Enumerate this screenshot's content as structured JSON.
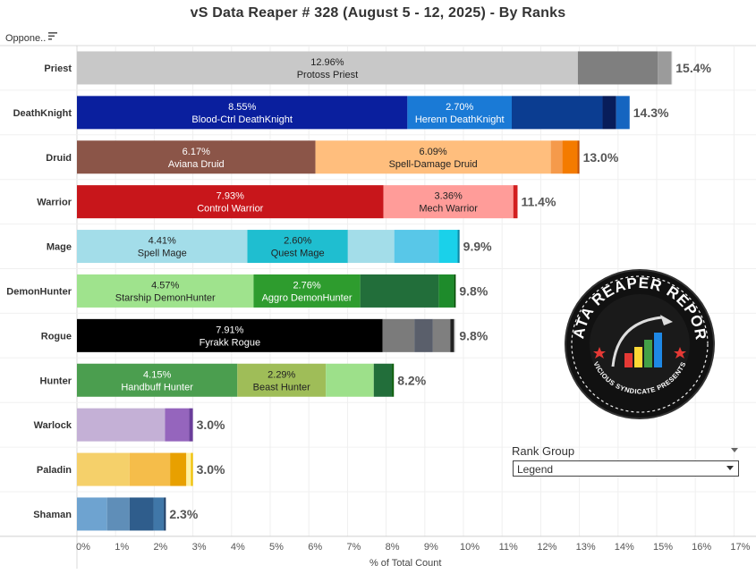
{
  "title": "vS Data Reaper #  328 (August 5 - 12, 2025) - By Ranks",
  "header": {
    "row_label": "Oppone..",
    "sort_icon": "sort-descending-icon"
  },
  "legend": {
    "title": "Rank Group",
    "selected": "Legend",
    "dropdown_icon": "chevron-down-icon"
  },
  "logo": {
    "text": "DATA REAPER REPORT",
    "subtext": "VICIOUS SYNDICATE PRESENTS"
  },
  "chart_data": {
    "type": "bar",
    "orientation": "horizontal",
    "stacked": true,
    "xlabel": "% of Total Count",
    "xlim": [
      0,
      17
    ],
    "x_ticks": [
      "0%",
      "1%",
      "2%",
      "3%",
      "4%",
      "5%",
      "6%",
      "7%",
      "8%",
      "9%",
      "10%",
      "11%",
      "12%",
      "13%",
      "14%",
      "15%",
      "16%",
      "17%"
    ],
    "rows": [
      {
        "class": "Priest",
        "total_label": "15.4%",
        "segments": [
          {
            "value": 12.96,
            "label": "12.96%",
            "name": "Protoss Priest",
            "color": "#c8c8c8",
            "text_color": "#222222"
          },
          {
            "value": 2.07,
            "color": "#7f7f7f"
          },
          {
            "value": 0.35,
            "color": "#9b9b9b"
          },
          {
            "value": 0.02,
            "color": "#d0d0d0"
          }
        ]
      },
      {
        "class": "DeathKnight",
        "total_label": "14.3%",
        "segments": [
          {
            "value": 8.55,
            "label": "8.55%",
            "name": "Blood-Ctrl DeathKnight",
            "color": "#0a1f9e",
            "text_color": "#ffffff"
          },
          {
            "value": 2.7,
            "label": "2.70%",
            "name": "Herenn DeathKnight",
            "color": "#1a7ad6",
            "text_color": "#ffffff"
          },
          {
            "value": 2.35,
            "color": "#0b3d91"
          },
          {
            "value": 0.35,
            "color": "#081d5a"
          },
          {
            "value": 0.35,
            "color": "#1565c0"
          }
        ]
      },
      {
        "class": "Druid",
        "total_label": "13.0%",
        "segments": [
          {
            "value": 6.17,
            "label": "6.17%",
            "name": "Aviana Druid",
            "color": "#8b5548",
            "text_color": "#ffffff"
          },
          {
            "value": 6.09,
            "label": "6.09%",
            "name": "Spell-Damage Druid",
            "color": "#ffbe7d",
            "text_color": "#222222"
          },
          {
            "value": 0.3,
            "color": "#f59a4b"
          },
          {
            "value": 0.39,
            "color": "#f47b00"
          },
          {
            "value": 0.05,
            "color": "#c45000"
          }
        ]
      },
      {
        "class": "Warrior",
        "total_label": "11.4%",
        "segments": [
          {
            "value": 7.93,
            "label": "7.93%",
            "name": "Control Warrior",
            "color": "#c8161b",
            "text_color": "#ffffff"
          },
          {
            "value": 3.36,
            "label": "3.36%",
            "name": "Mech Warrior",
            "color": "#ff9c99",
            "text_color": "#222222"
          },
          {
            "value": 0.11,
            "color": "#d21f1f"
          }
        ]
      },
      {
        "class": "Mage",
        "total_label": "9.9%",
        "segments": [
          {
            "value": 4.41,
            "label": "4.41%",
            "name": "Spell Mage",
            "color": "#a3dde9",
            "text_color": "#222222"
          },
          {
            "value": 2.6,
            "label": "2.60%",
            "name": "Quest Mage",
            "color": "#1fbed0",
            "text_color": "#222222"
          },
          {
            "value": 1.2,
            "color": "#a3dde9"
          },
          {
            "value": 1.15,
            "color": "#58c7e8"
          },
          {
            "value": 0.49,
            "color": "#1ad1ea"
          },
          {
            "value": 0.05,
            "color": "#0d8aa8"
          }
        ]
      },
      {
        "class": "DemonHunter",
        "total_label": "9.8%",
        "segments": [
          {
            "value": 4.57,
            "label": "4.57%",
            "name": "Starship DemonHunter",
            "color": "#9fe38d",
            "text_color": "#222222"
          },
          {
            "value": 2.76,
            "label": "2.76%",
            "name": "Aggro DemonHunter",
            "color": "#2e9c2e",
            "text_color": "#ffffff"
          },
          {
            "value": 2.03,
            "color": "#226e3a"
          },
          {
            "value": 0.4,
            "color": "#1e8b2b"
          },
          {
            "value": 0.04,
            "color": "#004d00"
          }
        ]
      },
      {
        "class": "Rogue",
        "total_label": "9.8%",
        "segments": [
          {
            "value": 7.91,
            "label": "7.91%",
            "name": "Fyrakk Rogue",
            "color": "#000000",
            "text_color": "#ffffff"
          },
          {
            "value": 0.82,
            "color": "#7b7b7b"
          },
          {
            "value": 0.48,
            "color": "#5a5f6b"
          },
          {
            "value": 0.45,
            "color": "#7f7f7f"
          },
          {
            "value": 0.1,
            "color": "#222222"
          },
          {
            "value": 0.04,
            "color": "#dddddd"
          }
        ]
      },
      {
        "class": "Hunter",
        "total_label": "8.2%",
        "segments": [
          {
            "value": 4.15,
            "label": "4.15%",
            "name": "Handbuff Hunter",
            "color": "#4b9e4f",
            "text_color": "#ffffff"
          },
          {
            "value": 2.29,
            "label": "2.29%",
            "name": "Beast Hunter",
            "color": "#9fbd58",
            "text_color": "#222222"
          },
          {
            "value": 1.24,
            "color": "#9de08a"
          },
          {
            "value": 0.47,
            "color": "#226e3a"
          },
          {
            "value": 0.05,
            "color": "#0a5d0a"
          }
        ]
      },
      {
        "class": "Warlock",
        "total_label": "3.0%",
        "segments": [
          {
            "value": 2.28,
            "color": "#c4b0d6"
          },
          {
            "value": 0.62,
            "color": "#9565bd"
          },
          {
            "value": 0.1,
            "color": "#6a3d9a"
          }
        ]
      },
      {
        "class": "Paladin",
        "total_label": "3.0%",
        "segments": [
          {
            "value": 1.36,
            "color": "#f5d06a"
          },
          {
            "value": 1.05,
            "color": "#f5bd4a"
          },
          {
            "value": 0.42,
            "color": "#e8a000"
          },
          {
            "value": 0.12,
            "color": "#fff0a0"
          },
          {
            "value": 0.05,
            "color": "#f0c000"
          }
        ]
      },
      {
        "class": "Shaman",
        "total_label": "2.3%",
        "segments": [
          {
            "value": 0.78,
            "color": "#6ea3d0"
          },
          {
            "value": 0.58,
            "color": "#5f8eb8"
          },
          {
            "value": 0.62,
            "color": "#2f5d8c"
          },
          {
            "value": 0.27,
            "color": "#4077a8"
          },
          {
            "value": 0.05,
            "color": "#1a3c66"
          }
        ]
      }
    ],
    "grid": true,
    "legend_position": "right"
  }
}
